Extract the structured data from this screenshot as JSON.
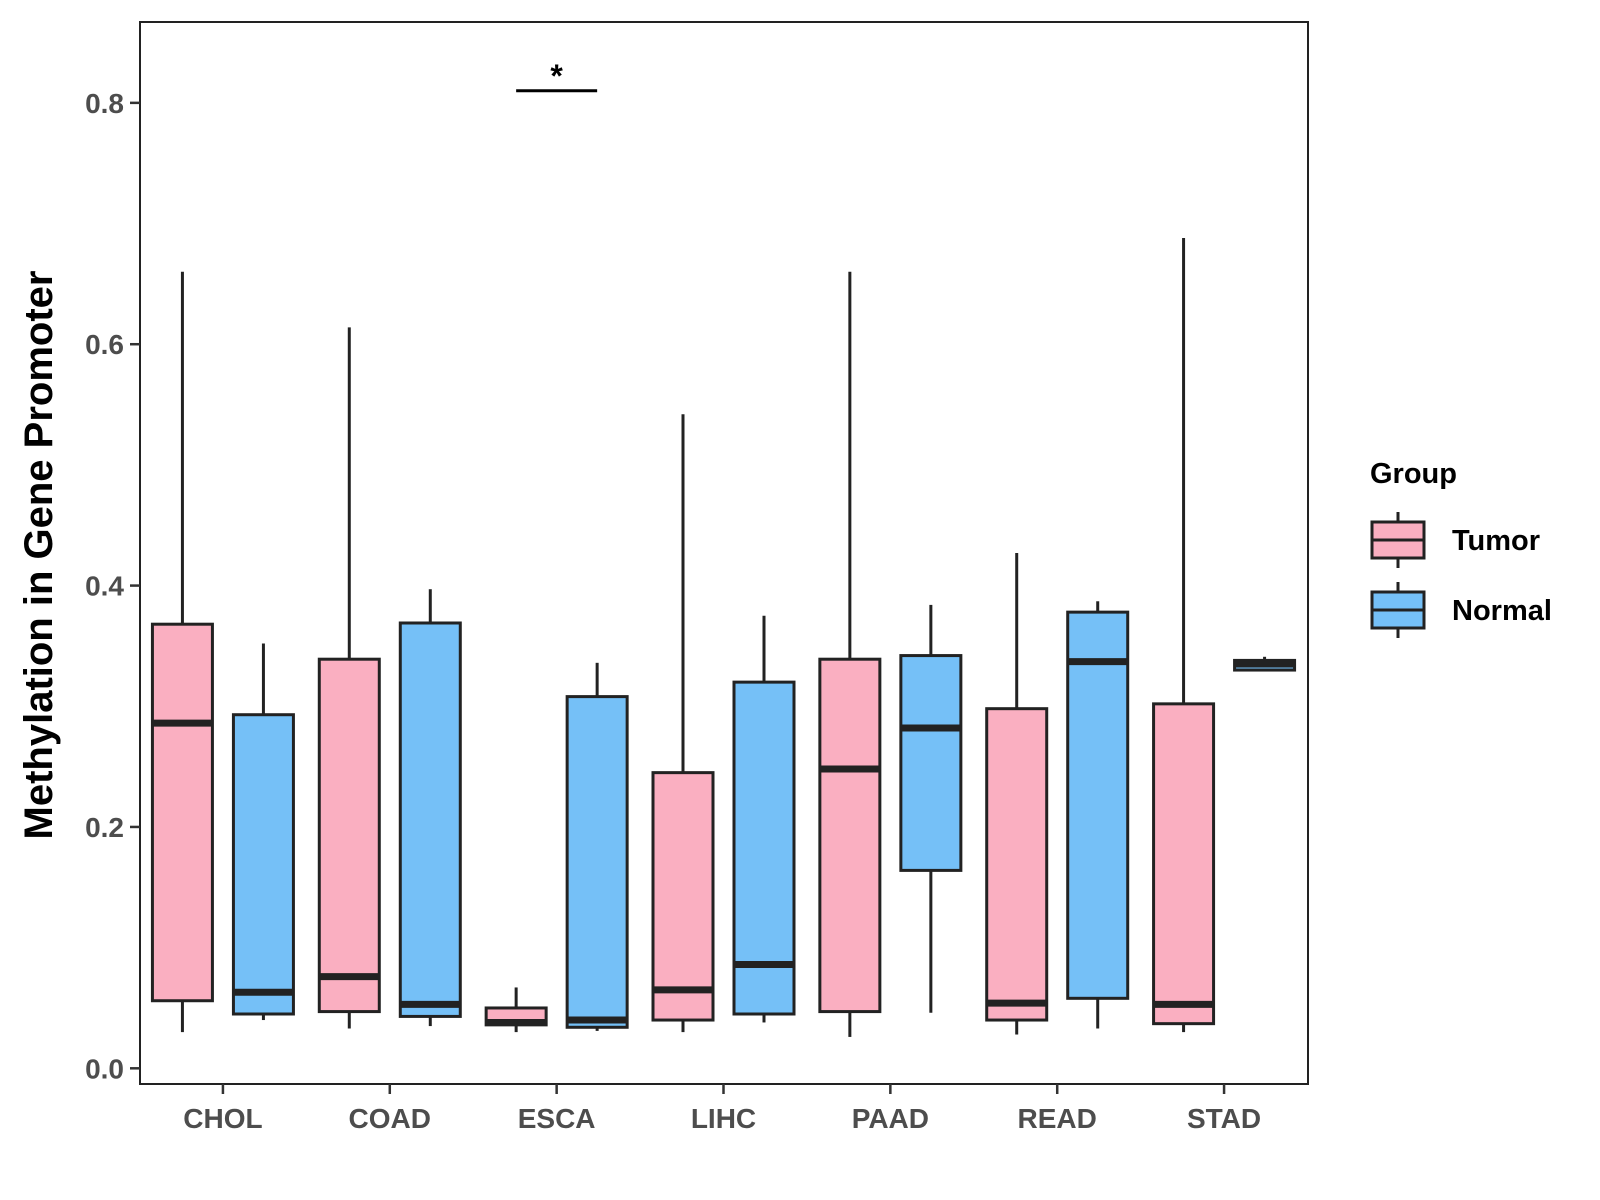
{
  "chart_data": {
    "type": "boxplot",
    "title": "",
    "xlabel": "",
    "ylabel": "Methylation in Gene Promoter",
    "ylim": [
      -0.013,
      0.867
    ],
    "yticks": [
      "0.0",
      "0.2",
      "0.4",
      "0.6",
      "0.8"
    ],
    "ytick_values": [
      0.0,
      0.2,
      0.4,
      0.6,
      0.8
    ],
    "categories": [
      "CHOL",
      "COAD",
      "ESCA",
      "LIHC",
      "PAAD",
      "READ",
      "STAD"
    ],
    "grid": false,
    "legend": {
      "title": "Group",
      "position": "right",
      "entries": [
        "Tumor",
        "Normal"
      ]
    },
    "colors": {
      "Tumor": "#FAAFC1",
      "Normal": "#75C0F7",
      "stroke": "#222222"
    },
    "series": [
      {
        "name": "Tumor",
        "boxes": [
          {
            "category": "CHOL",
            "min": 0.03,
            "q1": 0.056,
            "median": 0.286,
            "q3": 0.368,
            "max": 0.66
          },
          {
            "category": "COAD",
            "min": 0.033,
            "q1": 0.047,
            "median": 0.076,
            "q3": 0.339,
            "max": 0.614
          },
          {
            "category": "ESCA",
            "min": 0.03,
            "q1": 0.036,
            "median": 0.038,
            "q3": 0.05,
            "max": 0.067
          },
          {
            "category": "LIHC",
            "min": 0.03,
            "q1": 0.04,
            "median": 0.065,
            "q3": 0.245,
            "max": 0.542
          },
          {
            "category": "PAAD",
            "min": 0.026,
            "q1": 0.047,
            "median": 0.248,
            "q3": 0.339,
            "max": 0.66
          },
          {
            "category": "READ",
            "min": 0.028,
            "q1": 0.04,
            "median": 0.054,
            "q3": 0.298,
            "max": 0.427
          },
          {
            "category": "STAD",
            "min": 0.03,
            "q1": 0.037,
            "median": 0.053,
            "q3": 0.302,
            "max": 0.688
          }
        ]
      },
      {
        "name": "Normal",
        "boxes": [
          {
            "category": "CHOL",
            "min": 0.04,
            "q1": 0.045,
            "median": 0.063,
            "q3": 0.293,
            "max": 0.352
          },
          {
            "category": "COAD",
            "min": 0.035,
            "q1": 0.043,
            "median": 0.053,
            "q3": 0.369,
            "max": 0.397
          },
          {
            "category": "ESCA",
            "min": 0.031,
            "q1": 0.034,
            "median": 0.04,
            "q3": 0.308,
            "max": 0.336
          },
          {
            "category": "LIHC",
            "min": 0.038,
            "q1": 0.045,
            "median": 0.086,
            "q3": 0.32,
            "max": 0.375
          },
          {
            "category": "PAAD",
            "min": 0.046,
            "q1": 0.164,
            "median": 0.282,
            "q3": 0.342,
            "max": 0.384
          },
          {
            "category": "READ",
            "min": 0.033,
            "q1": 0.058,
            "median": 0.337,
            "q3": 0.378,
            "max": 0.387
          },
          {
            "category": "STAD",
            "min": 0.33,
            "q1": 0.33,
            "median": 0.335,
            "q3": 0.338,
            "max": 0.341
          }
        ]
      }
    ],
    "annotations": [
      {
        "category": "ESCA",
        "text": "*",
        "bracket_value": 0.81
      }
    ]
  }
}
